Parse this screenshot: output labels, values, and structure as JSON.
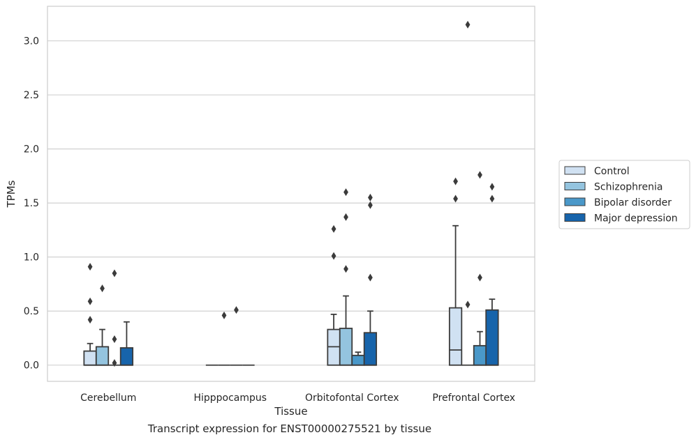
{
  "caption": "Transcript expression for ENST00000275521 by tissue",
  "chart_data": {
    "type": "box",
    "xlabel": "Tissue",
    "ylabel": "TPMs",
    "ylim": [
      -0.15,
      3.32
    ],
    "yticks": [
      0.0,
      0.5,
      1.0,
      1.5,
      2.0,
      2.5,
      3.0
    ],
    "ytick_labels": [
      "0.0",
      "0.5",
      "1.0",
      "1.5",
      "2.0",
      "2.5",
      "3.0"
    ],
    "grid": "horizontal",
    "legend_position": "right",
    "categories": [
      "Cerebellum",
      "Hipppocampus",
      "Orbitofontal Cortex",
      "Prefrontal Cortex"
    ],
    "series": [
      {
        "name": "Control",
        "color": "#d0e1f2",
        "boxes": [
          {
            "q1": 0.0,
            "median": 0.0,
            "q3": 0.13,
            "whisker_low": 0.0,
            "whisker_high": 0.2,
            "outliers": [
              0.42,
              0.59,
              0.91
            ]
          },
          {
            "q1": 0.0,
            "median": 0.0,
            "q3": 0.0,
            "whisker_low": 0.0,
            "whisker_high": 0.0,
            "outliers": []
          },
          {
            "q1": 0.0,
            "median": 0.17,
            "q3": 0.33,
            "whisker_low": 0.0,
            "whisker_high": 0.47,
            "outliers": [
              1.01,
              1.26
            ]
          },
          {
            "q1": 0.0,
            "median": 0.14,
            "q3": 0.53,
            "whisker_low": 0.0,
            "whisker_high": 1.29,
            "outliers": [
              1.54,
              1.7
            ]
          }
        ]
      },
      {
        "name": "Schizophrenia",
        "color": "#94c4df",
        "boxes": [
          {
            "q1": 0.0,
            "median": 0.0,
            "q3": 0.17,
            "whisker_low": 0.0,
            "whisker_high": 0.33,
            "outliers": [
              0.71
            ]
          },
          {
            "q1": 0.0,
            "median": 0.0,
            "q3": 0.0,
            "whisker_low": 0.0,
            "whisker_high": 0.0,
            "outliers": [
              0.46
            ]
          },
          {
            "q1": 0.0,
            "median": 0.0,
            "q3": 0.34,
            "whisker_low": 0.0,
            "whisker_high": 0.64,
            "outliers": [
              0.89,
              1.37,
              1.6
            ]
          },
          {
            "q1": 0.0,
            "median": 0.0,
            "q3": 0.0,
            "whisker_low": 0.0,
            "whisker_high": 0.0,
            "outliers": [
              0.56,
              3.15
            ]
          }
        ]
      },
      {
        "name": "Bipolar disorder",
        "color": "#4a98c9",
        "boxes": [
          {
            "q1": 0.0,
            "median": 0.0,
            "q3": 0.0,
            "whisker_low": 0.0,
            "whisker_high": 0.0,
            "outliers": [
              0.02,
              0.24,
              0.85
            ]
          },
          {
            "q1": 0.0,
            "median": 0.0,
            "q3": 0.0,
            "whisker_low": 0.0,
            "whisker_high": 0.0,
            "outliers": [
              0.51
            ]
          },
          {
            "q1": 0.0,
            "median": 0.0,
            "q3": 0.09,
            "whisker_low": 0.0,
            "whisker_high": 0.12,
            "outliers": []
          },
          {
            "q1": 0.0,
            "median": 0.0,
            "q3": 0.18,
            "whisker_low": 0.0,
            "whisker_high": 0.31,
            "outliers": [
              0.81,
              1.76
            ]
          }
        ]
      },
      {
        "name": "Major depression",
        "color": "#1764ab",
        "boxes": [
          {
            "q1": 0.0,
            "median": 0.0,
            "q3": 0.16,
            "whisker_low": 0.0,
            "whisker_high": 0.4,
            "outliers": []
          },
          {
            "q1": 0.0,
            "median": 0.0,
            "q3": 0.0,
            "whisker_low": 0.0,
            "whisker_high": 0.0,
            "outliers": []
          },
          {
            "q1": 0.0,
            "median": 0.0,
            "q3": 0.3,
            "whisker_low": 0.0,
            "whisker_high": 0.5,
            "outliers": [
              0.81,
              1.48,
              1.55
            ]
          },
          {
            "q1": 0.0,
            "median": 0.0,
            "q3": 0.51,
            "whisker_low": 0.0,
            "whisker_high": 0.61,
            "outliers": [
              1.54,
              1.65
            ]
          }
        ]
      }
    ]
  }
}
